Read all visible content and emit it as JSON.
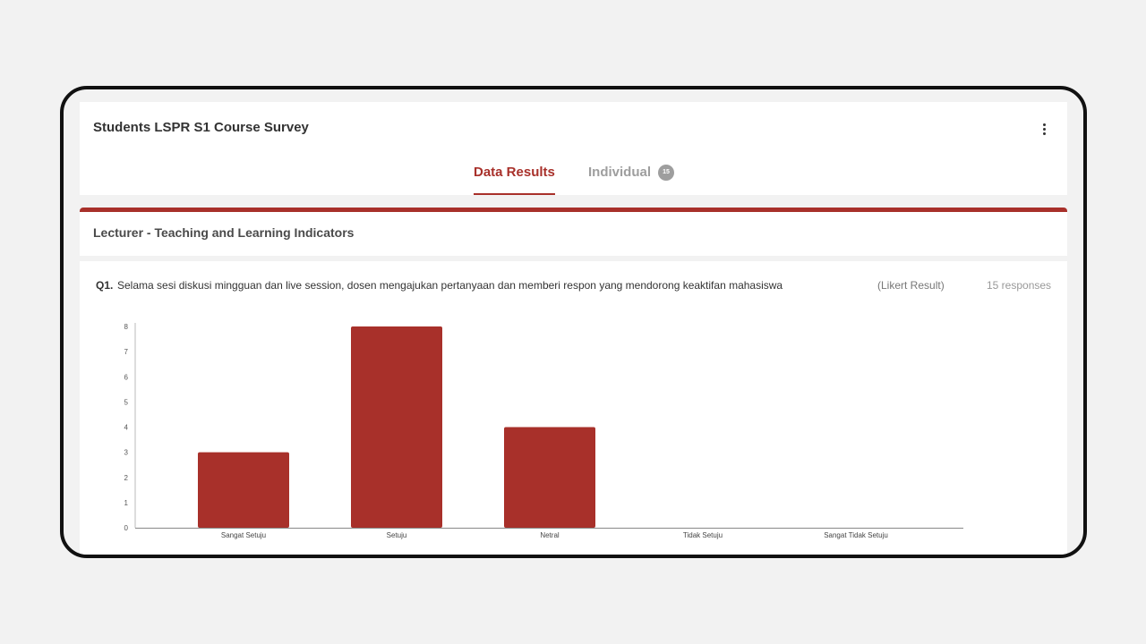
{
  "header": {
    "title": "Students LSPR S1 Course Survey",
    "menu_icon": "more-vertical-icon"
  },
  "tabs": [
    {
      "label": "Data Results",
      "active": true
    },
    {
      "label": "Individual",
      "badge": "15",
      "active": false
    }
  ],
  "section": {
    "title": "Lecturer - Teaching and Learning Indicators"
  },
  "question": {
    "number": "Q1.",
    "text": "Selama sesi diskusi mingguan dan live session, dosen mengajukan pertanyaan dan memberi respon yang mendorong keaktifan mahasiswa",
    "type_label": "(Likert Result)",
    "responses_label": "15 responses"
  },
  "colors": {
    "accent": "#a8302a",
    "bar": "#a8302a",
    "tab_inactive": "#9e9e9e"
  },
  "chart_data": {
    "type": "bar",
    "categories": [
      "Sangat Setuju",
      "Setuju",
      "Netral",
      "Tidak Setuju",
      "Sangat Tidak Setuju"
    ],
    "values": [
      3,
      8,
      4,
      0,
      0
    ],
    "yticks": [
      "0",
      "1",
      "2",
      "3",
      "4",
      "5",
      "6",
      "7",
      "8"
    ],
    "ylim": [
      0,
      8
    ],
    "grid": false,
    "legend": "none"
  }
}
